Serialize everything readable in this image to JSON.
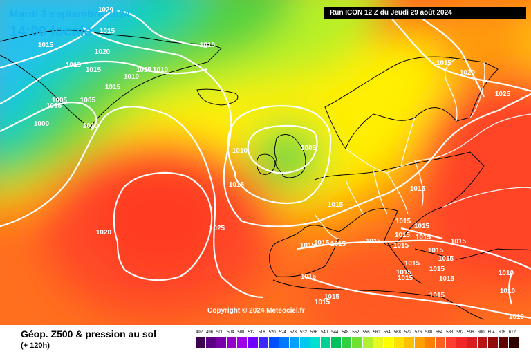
{
  "header": {
    "date_label": "Mardi 3 septembre 2024",
    "time_label": "14:00 locale",
    "run_label": "Run ICON 12 Z du Jeudi 29 août 2024"
  },
  "footer": {
    "title": "Géop. Z500 & pression au sol",
    "lead_time": "(+ 120h)",
    "copyright": "Copyright © 2024 Meteociel.fr"
  },
  "legend": {
    "values": [
      "492",
      "496",
      "500",
      "504",
      "508",
      "512",
      "516",
      "520",
      "524",
      "528",
      "532",
      "536",
      "540",
      "544",
      "548",
      "552",
      "556",
      "560",
      "564",
      "568",
      "572",
      "576",
      "580",
      "584",
      "588",
      "592",
      "596",
      "600",
      "604",
      "608",
      "612"
    ],
    "colors": [
      "#3d0050",
      "#5a0080",
      "#7800a8",
      "#9300c8",
      "#a000e6",
      "#6e00ff",
      "#3c28ff",
      "#0050ff",
      "#0078ff",
      "#00a0ff",
      "#00c8f0",
      "#00e0d0",
      "#00d090",
      "#00c060",
      "#30d040",
      "#70e030",
      "#b0f030",
      "#e8f820",
      "#ffff00",
      "#ffe000",
      "#ffc000",
      "#ffa000",
      "#ff8000",
      "#ff6020",
      "#ff4030",
      "#f02828",
      "#d81e1e",
      "#b81414",
      "#900a0a",
      "#600000",
      "#300000"
    ]
  },
  "isobars": [
    {
      "value": "1020",
      "lbl": [
        [
          153,
          17
        ]
      ]
    },
    {
      "value": "1015",
      "lbl": [
        [
          155,
          48
        ],
        [
          66,
          68
        ],
        [
          106,
          97
        ],
        [
          135,
          104
        ],
        [
          208,
          104
        ],
        [
          163,
          129
        ]
      ]
    },
    {
      "value": "1010",
      "lbl": [
        [
          300,
          68
        ],
        [
          232,
          104
        ],
        [
          190,
          114
        ],
        [
          131,
          185
        ]
      ]
    },
    {
      "value": "1020",
      "lbl": [
        [
          148,
          78
        ],
        [
          676,
          108
        ]
      ]
    },
    {
      "value": "1005",
      "lbl": [
        [
          86,
          148
        ],
        [
          78,
          156
        ],
        [
          446,
          217
        ]
      ]
    },
    {
      "value": "1005",
      "lbl": [
        [
          127,
          148
        ]
      ]
    },
    {
      "value": "1000",
      "lbl": [
        [
          60,
          182
        ]
      ]
    },
    {
      "value": "1010",
      "lbl": [
        [
          347,
          221
        ]
      ]
    },
    {
      "value": "1015",
      "lbl": [
        [
          342,
          270
        ],
        [
          642,
          94
        ],
        [
          604,
          276
        ],
        [
          485,
          299
        ]
      ]
    },
    {
      "value": "1025",
      "lbl": [
        [
          727,
          139
        ],
        [
          314,
          333
        ]
      ]
    },
    {
      "value": "1020",
      "lbl": [
        [
          150,
          339
        ]
      ]
    },
    {
      "value": "1015",
      "lbl": [
        [
          583,
          323
        ],
        [
          540,
          352
        ],
        [
          445,
          358
        ],
        [
          465,
          354
        ],
        [
          489,
          356
        ]
      ]
    },
    {
      "value": "1015",
      "lbl": [
        [
          610,
          330
        ],
        [
          612,
          346
        ],
        [
          582,
          343
        ],
        [
          580,
          358
        ],
        [
          663,
          352
        ],
        [
          630,
          365
        ],
        [
          645,
          377
        ],
        [
          646,
          406
        ],
        [
          632,
          392
        ],
        [
          596,
          384
        ],
        [
          584,
          397
        ],
        [
          586,
          405
        ],
        [
          446,
          403
        ],
        [
          480,
          432
        ],
        [
          466,
          440
        ],
        [
          632,
          430
        ]
      ]
    },
    {
      "value": "1010",
      "lbl": [
        [
          732,
          398
        ],
        [
          734,
          424
        ],
        [
          747,
          461
        ]
      ]
    }
  ]
}
